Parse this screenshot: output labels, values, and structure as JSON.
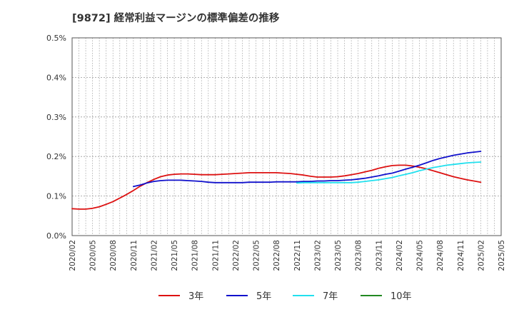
{
  "chart_data": {
    "type": "line",
    "title": "[9872]  経常利益マージンの標準偏差の推移",
    "xlabel": "",
    "ylabel": "",
    "x_start": "2020/02",
    "x_end": "2025/05",
    "x_tick_labels": [
      "2020/02",
      "2020/05",
      "2020/08",
      "2020/11",
      "2021/02",
      "2021/05",
      "2021/08",
      "2021/11",
      "2022/02",
      "2022/05",
      "2022/08",
      "2022/11",
      "2023/02",
      "2023/05",
      "2023/08",
      "2023/11",
      "2024/02",
      "2024/05",
      "2024/08",
      "2024/11",
      "2025/02",
      "2025/05"
    ],
    "y_tick_values": [
      0.0,
      0.1,
      0.2,
      0.3,
      0.4,
      0.5
    ],
    "y_tick_labels": [
      "0.0%",
      "0.1%",
      "0.2%",
      "0.3%",
      "0.4%",
      "0.5%"
    ],
    "ylim": [
      0.0,
      0.5
    ],
    "grid": true,
    "legend_position": "bottom",
    "series": [
      {
        "name": "3年",
        "color": "#dd1111",
        "x": [
          "2020/02",
          "2020/03",
          "2020/04",
          "2020/05",
          "2020/06",
          "2020/07",
          "2020/08",
          "2020/09",
          "2020/10",
          "2020/11",
          "2020/12",
          "2021/01",
          "2021/02",
          "2021/03",
          "2021/04",
          "2021/05",
          "2021/06",
          "2021/07",
          "2021/08",
          "2021/09",
          "2021/10",
          "2021/11",
          "2021/12",
          "2022/01",
          "2022/02",
          "2022/03",
          "2022/04",
          "2022/05",
          "2022/06",
          "2022/07",
          "2022/08",
          "2022/09",
          "2022/10",
          "2022/11",
          "2022/12",
          "2023/01",
          "2023/02",
          "2023/03",
          "2023/04",
          "2023/05",
          "2023/06",
          "2023/07",
          "2023/08",
          "2023/09",
          "2023/10",
          "2023/11",
          "2023/12",
          "2024/01",
          "2024/02",
          "2024/03",
          "2024/04",
          "2024/05",
          "2024/06",
          "2024/07",
          "2024/08",
          "2024/09",
          "2024/10",
          "2024/11",
          "2024/12",
          "2025/01",
          "2025/02"
        ],
        "values": [
          0.068,
          0.067,
          0.067,
          0.069,
          0.073,
          0.079,
          0.086,
          0.095,
          0.104,
          0.114,
          0.125,
          0.134,
          0.142,
          0.149,
          0.153,
          0.155,
          0.156,
          0.156,
          0.155,
          0.154,
          0.154,
          0.154,
          0.155,
          0.156,
          0.157,
          0.158,
          0.159,
          0.159,
          0.159,
          0.159,
          0.159,
          0.158,
          0.157,
          0.155,
          0.153,
          0.15,
          0.148,
          0.148,
          0.148,
          0.149,
          0.151,
          0.154,
          0.157,
          0.161,
          0.165,
          0.17,
          0.174,
          0.177,
          0.178,
          0.178,
          0.176,
          0.173,
          0.169,
          0.164,
          0.159,
          0.154,
          0.149,
          0.145,
          0.141,
          0.138,
          0.135
        ]
      },
      {
        "name": "5年",
        "color": "#1111cc",
        "x": [
          "2020/11",
          "2020/12",
          "2021/01",
          "2021/02",
          "2021/03",
          "2021/04",
          "2021/05",
          "2021/06",
          "2021/07",
          "2021/08",
          "2021/09",
          "2021/10",
          "2021/11",
          "2021/12",
          "2022/01",
          "2022/02",
          "2022/03",
          "2022/04",
          "2022/05",
          "2022/06",
          "2022/07",
          "2022/08",
          "2022/09",
          "2022/10",
          "2022/11",
          "2022/12",
          "2023/01",
          "2023/02",
          "2023/03",
          "2023/04",
          "2023/05",
          "2023/06",
          "2023/07",
          "2023/08",
          "2023/09",
          "2023/10",
          "2023/11",
          "2023/12",
          "2024/01",
          "2024/02",
          "2024/03",
          "2024/04",
          "2024/05",
          "2024/06",
          "2024/07",
          "2024/08",
          "2024/09",
          "2024/10",
          "2024/11",
          "2024/12",
          "2025/01",
          "2025/02"
        ],
        "values": [
          0.124,
          0.128,
          0.133,
          0.137,
          0.139,
          0.14,
          0.14,
          0.14,
          0.139,
          0.138,
          0.137,
          0.135,
          0.134,
          0.134,
          0.134,
          0.134,
          0.134,
          0.135,
          0.135,
          0.135,
          0.135,
          0.136,
          0.136,
          0.136,
          0.136,
          0.137,
          0.137,
          0.138,
          0.138,
          0.139,
          0.139,
          0.14,
          0.141,
          0.143,
          0.145,
          0.148,
          0.151,
          0.155,
          0.158,
          0.163,
          0.168,
          0.173,
          0.178,
          0.184,
          0.19,
          0.195,
          0.199,
          0.203,
          0.206,
          0.209,
          0.211,
          0.213
        ]
      },
      {
        "name": "7年",
        "color": "#22e0ee",
        "x": [
          "2022/11",
          "2022/12",
          "2023/01",
          "2023/02",
          "2023/03",
          "2023/04",
          "2023/05",
          "2023/06",
          "2023/07",
          "2023/08",
          "2023/09",
          "2023/10",
          "2023/11",
          "2023/12",
          "2024/01",
          "2024/02",
          "2024/03",
          "2024/04",
          "2024/05",
          "2024/06",
          "2024/07",
          "2024/08",
          "2024/09",
          "2024/10",
          "2024/11",
          "2024/12",
          "2025/01",
          "2025/02"
        ],
        "values": [
          0.133,
          0.134,
          0.134,
          0.134,
          0.134,
          0.134,
          0.134,
          0.134,
          0.134,
          0.135,
          0.137,
          0.139,
          0.141,
          0.144,
          0.147,
          0.151,
          0.155,
          0.159,
          0.164,
          0.168,
          0.172,
          0.175,
          0.178,
          0.18,
          0.182,
          0.184,
          0.185,
          0.186
        ]
      },
      {
        "name": "10年",
        "color": "#228822",
        "x": [],
        "values": []
      }
    ]
  }
}
